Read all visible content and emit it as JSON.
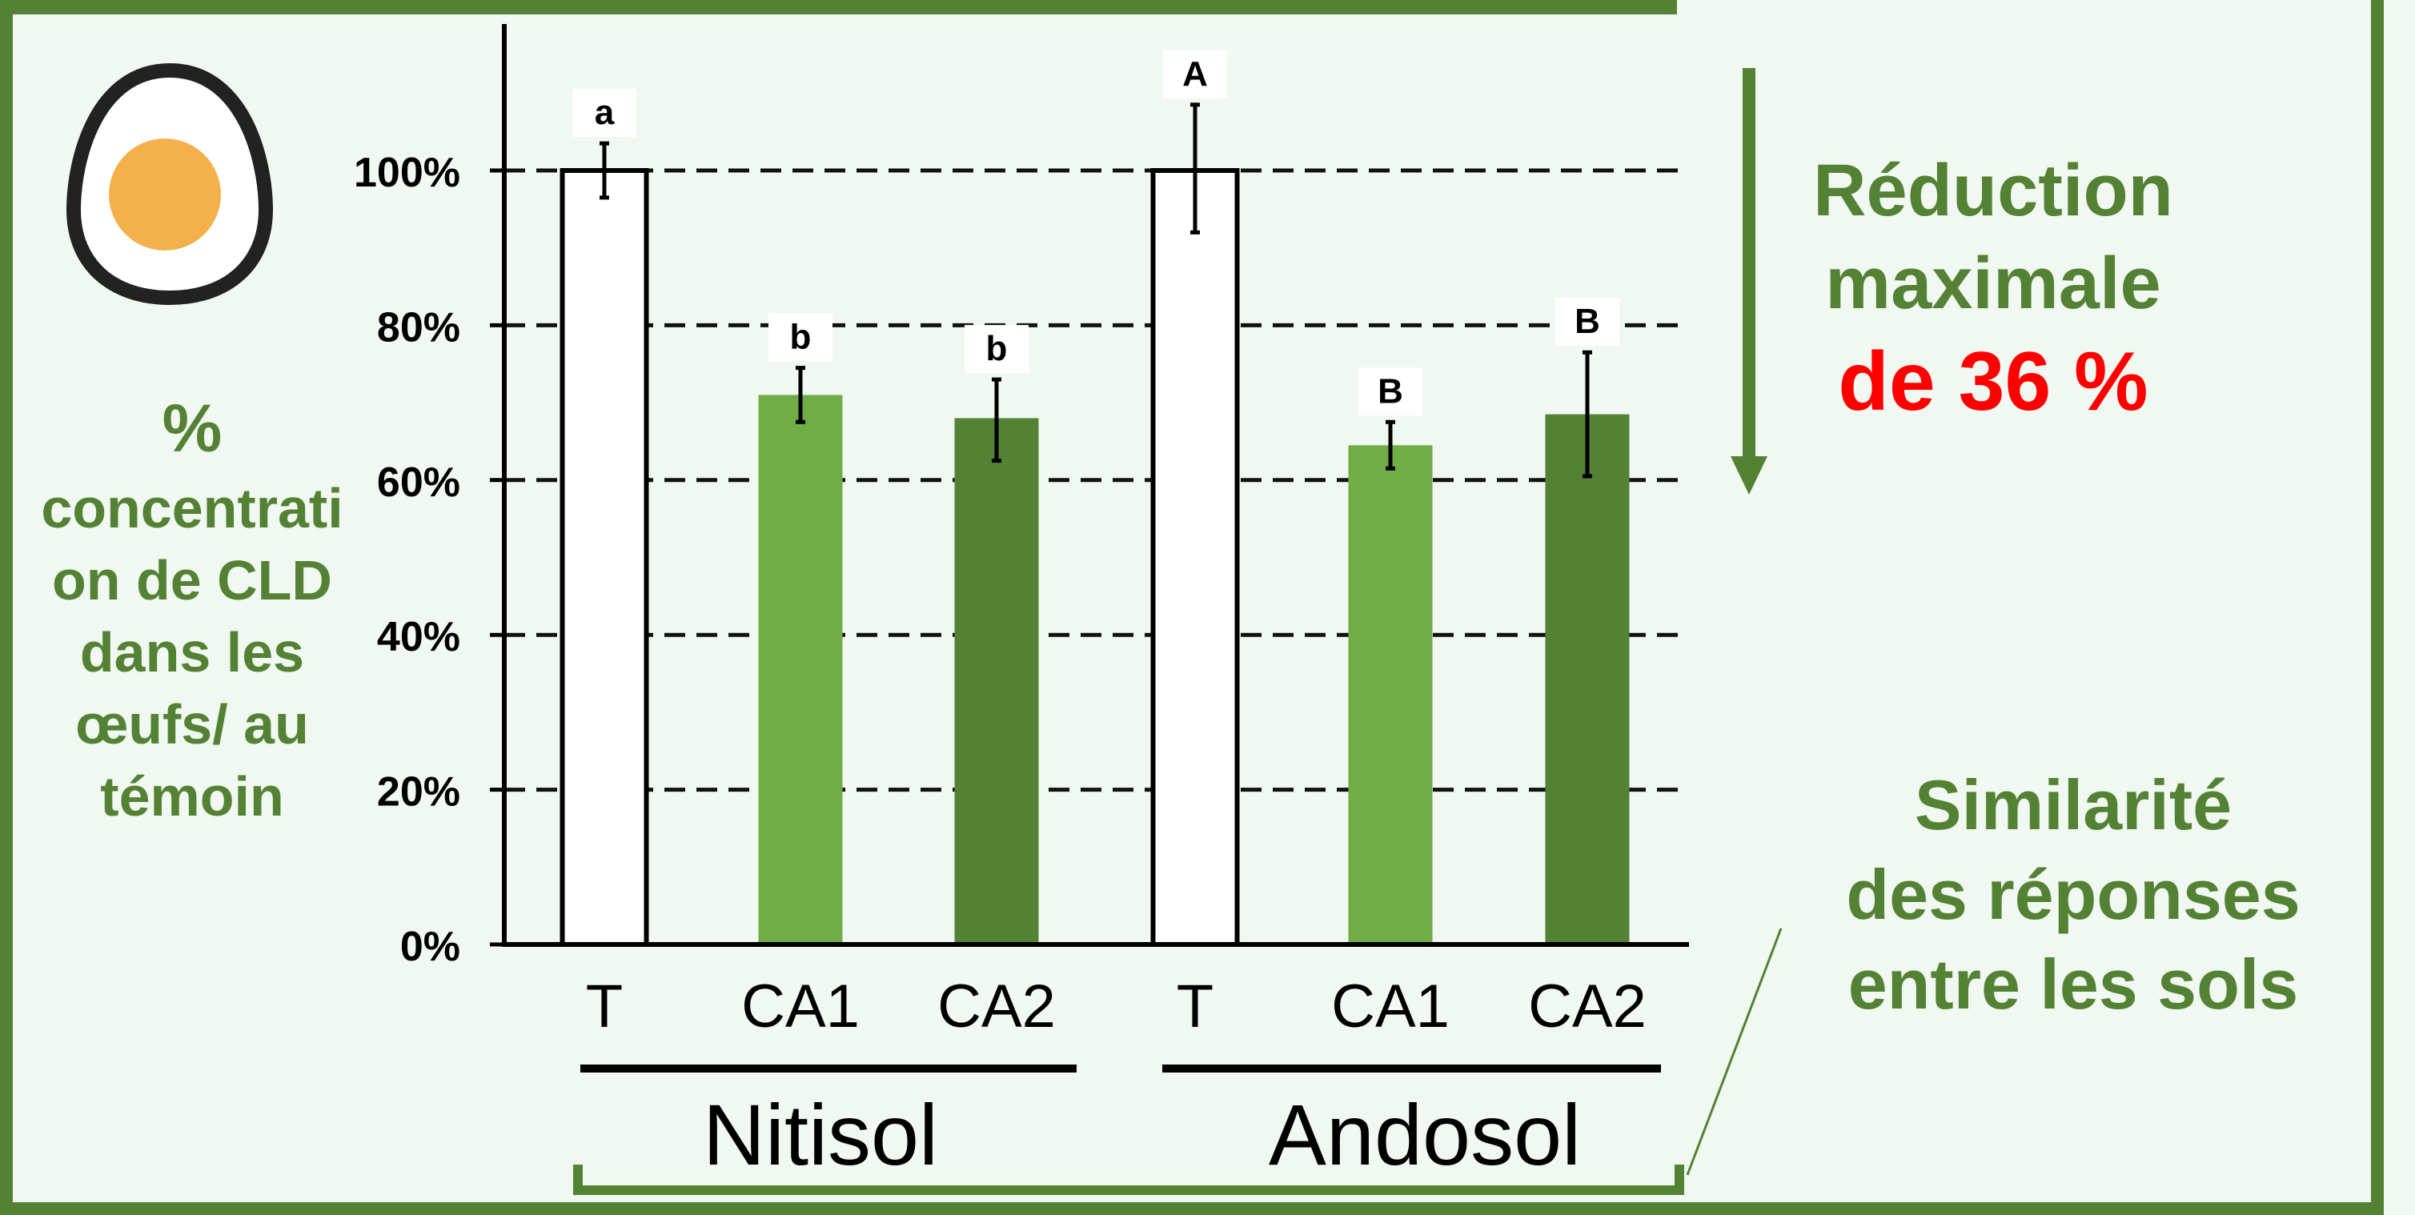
{
  "chart_data": {
    "type": "bar",
    "ylabel": "% concentration de CLD dans les œufs/ au témoin",
    "ylim": [
      0,
      100
    ],
    "yticks": [
      "0%",
      "20%",
      "40%",
      "60%",
      "80%",
      "100%"
    ],
    "ytick_values": [
      0,
      20,
      40,
      60,
      80,
      100
    ],
    "grid": true,
    "groups": [
      {
        "name": "Nitisol",
        "bars": [
          {
            "label": "T",
            "value": 100,
            "err_low": 96.5,
            "err_high": 103.5,
            "letter": "a",
            "color": "#ffffff"
          },
          {
            "label": "CA1",
            "value": 71,
            "err_low": 67.5,
            "err_high": 74.5,
            "letter": "b",
            "color": "#70ad47"
          },
          {
            "label": "CA2",
            "value": 68,
            "err_low": 62.5,
            "err_high": 73,
            "letter": "b",
            "color": "#548235"
          }
        ]
      },
      {
        "name": "Andosol",
        "bars": [
          {
            "label": "T",
            "value": 100,
            "err_low": 92,
            "err_high": 108.5,
            "letter": "A",
            "color": "#ffffff"
          },
          {
            "label": "CA1",
            "value": 64.5,
            "err_low": 61.5,
            "err_high": 67.5,
            "letter": "B",
            "color": "#70ad47"
          },
          {
            "label": "CA2",
            "value": 68.5,
            "err_low": 60.5,
            "err_high": 76.5,
            "letter": "B",
            "color": "#548235"
          }
        ]
      }
    ]
  },
  "ylabel_lines": {
    "l1": "%",
    "l2": "concentrati",
    "l3": "on de CLD",
    "l4": "dans les",
    "l5": "œufs/ au",
    "l6": "témoin"
  },
  "callout_reduction": {
    "line1": "Réduction",
    "line2": "maximale",
    "line3": "de 36 %"
  },
  "callout_similarity": {
    "line1": "Similarité",
    "line2": "des réponses",
    "line3": "entre les sols"
  },
  "colors": {
    "frame": "#548235",
    "panel_bg": "#f1f8f1",
    "highlight": "#ff0000",
    "yolk": "#f4b14b"
  },
  "icons": {
    "egg": "egg-icon",
    "arrow": "down-arrow-icon"
  }
}
